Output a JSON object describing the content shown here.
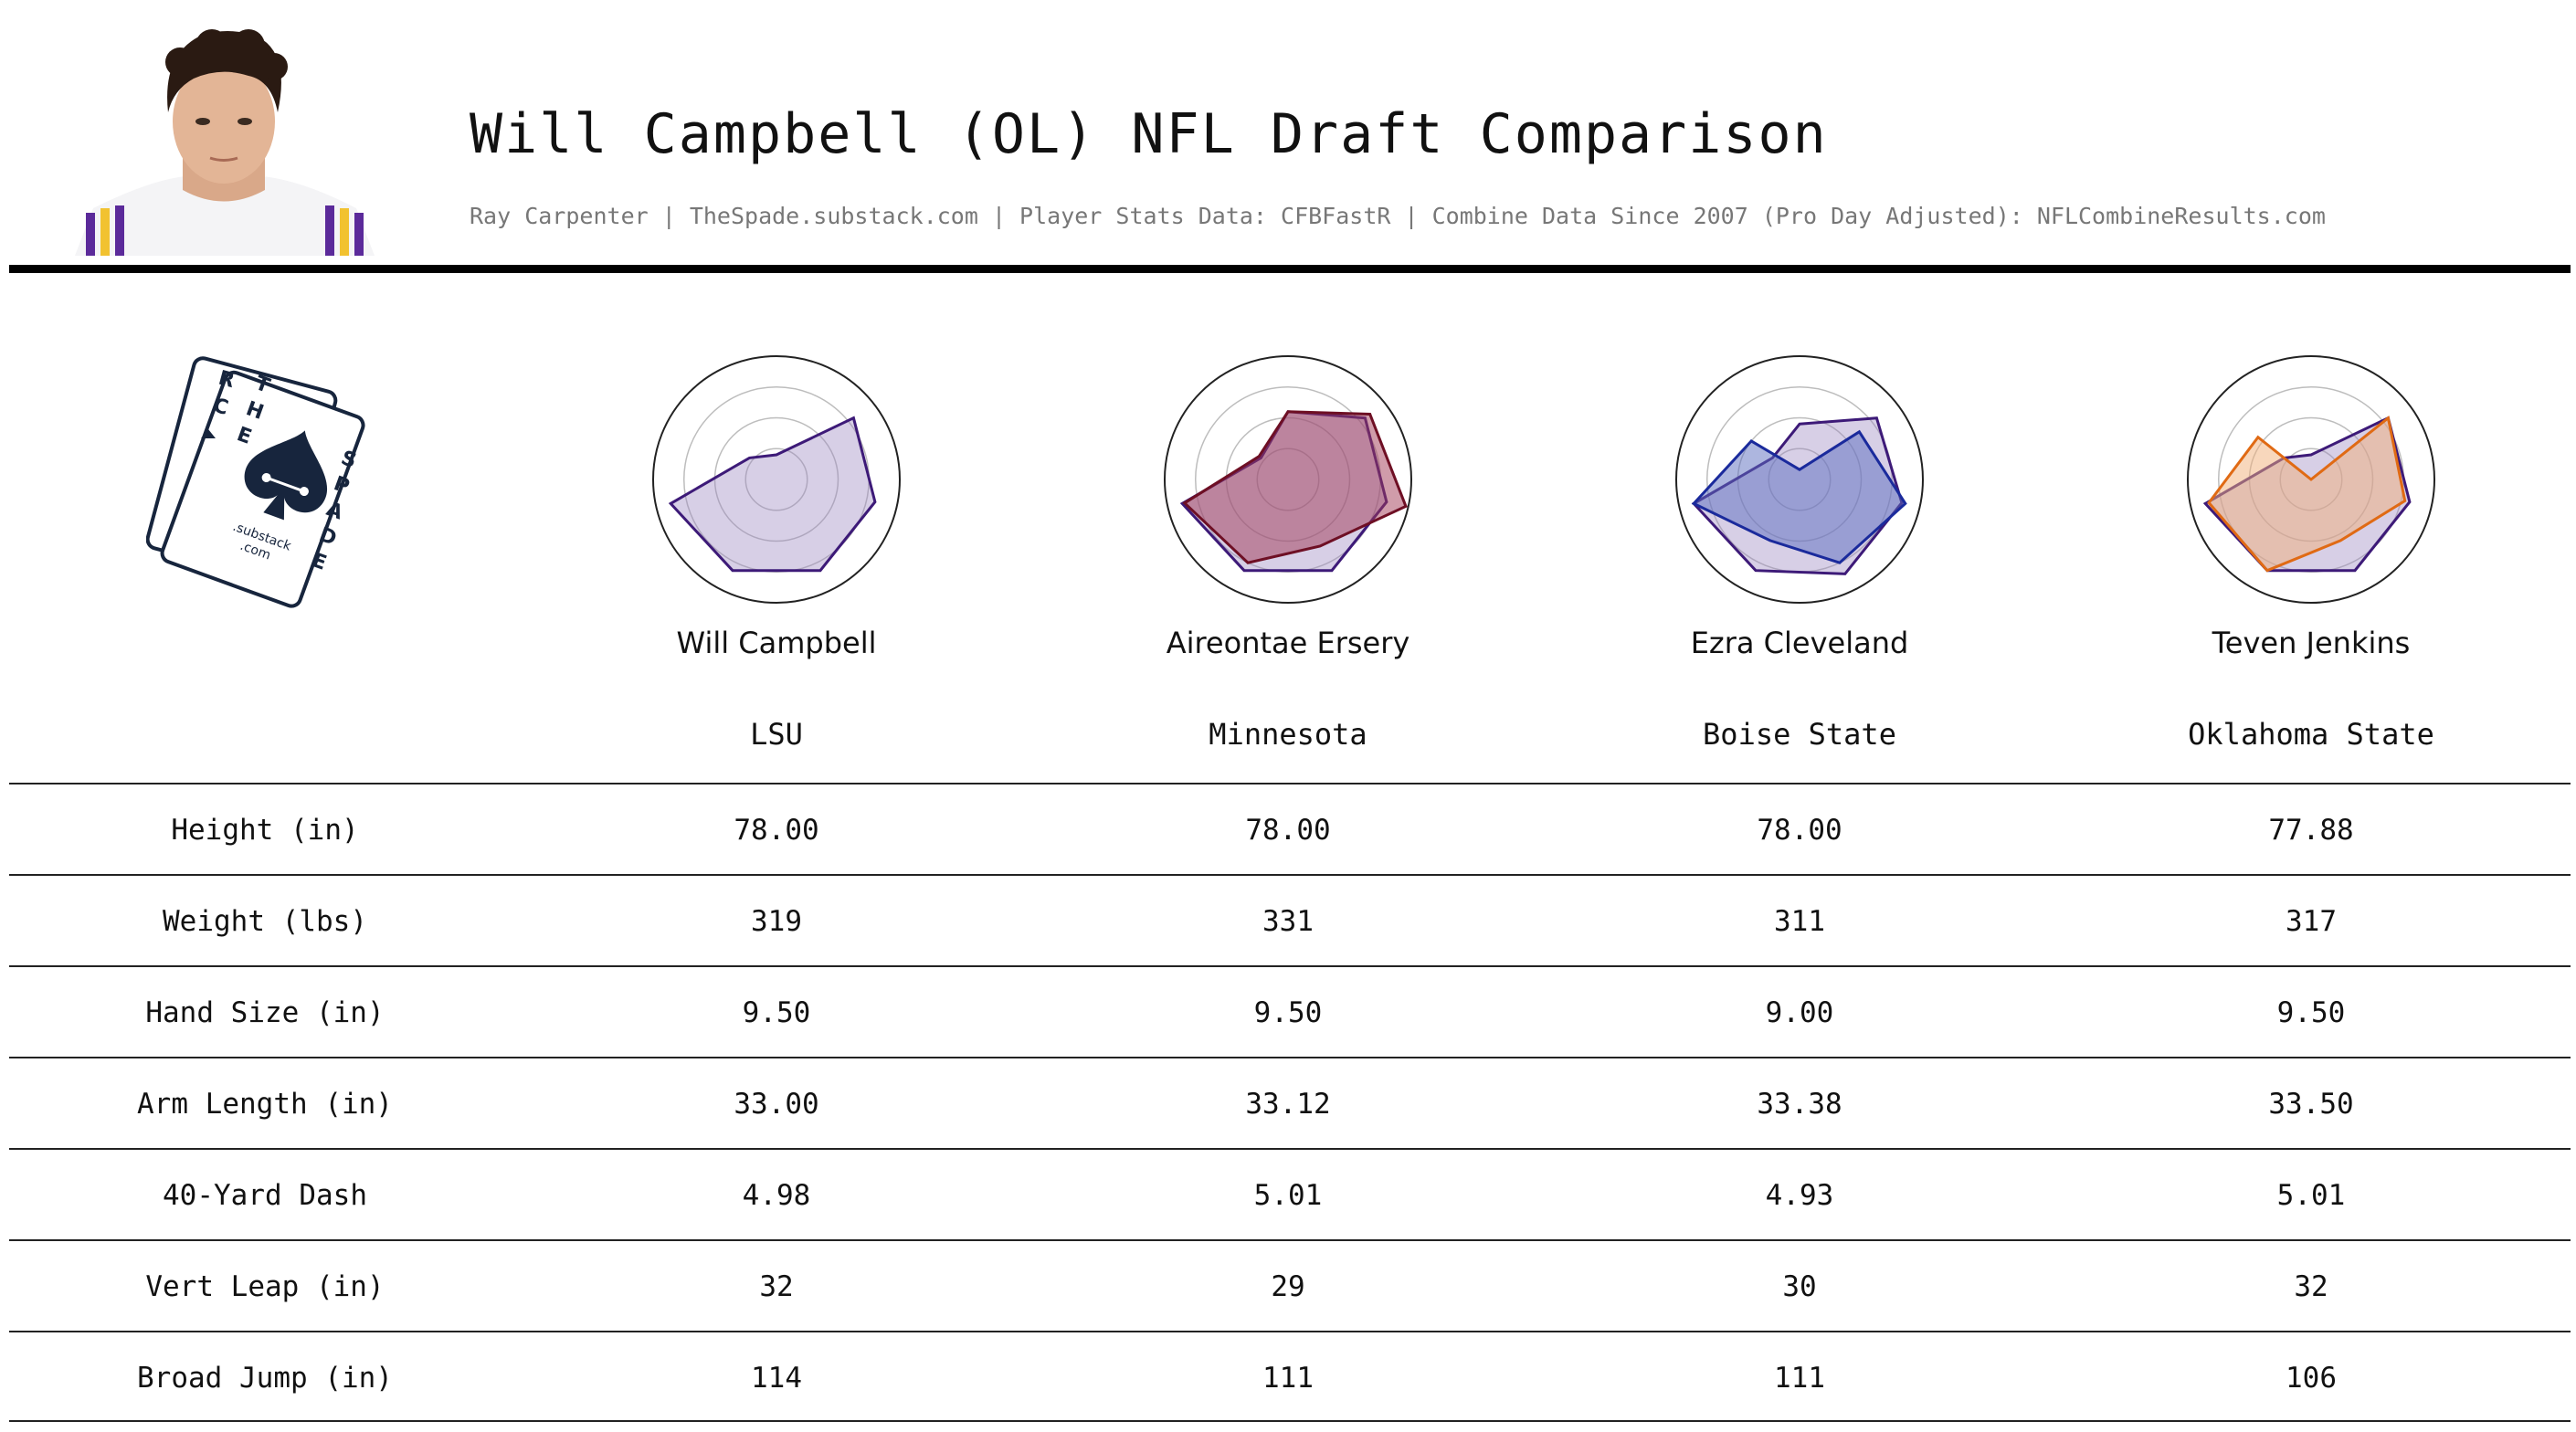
{
  "header": {
    "title": "Will Campbell (OL) NFL Draft Comparison",
    "subtitle": "Ray Carpenter | TheSpade.substack.com | Player Stats Data: CFBFastR | Combine Data Since 2007 (Pro Day Adjusted): NFLCombineResults.com"
  },
  "logo": {
    "left_letters": [
      "R",
      "C"
    ],
    "right_letters": [
      "T",
      "H",
      "E",
      "S",
      "P",
      "A",
      "D",
      "E"
    ],
    "sub_text": ".substack",
    "com_text": ".com",
    "color": "#17253d"
  },
  "chart_data": {
    "type": "radar",
    "axes_count": 7,
    "rlim": [
      0,
      1
    ],
    "players": [
      {
        "name": "Will Campbell",
        "school": "LSU",
        "color": "#3d1a78",
        "fill": "#9b86c0",
        "values": [
          0.2,
          0.8,
          0.82,
          0.82,
          0.82,
          0.88,
          0.28
        ],
        "compare": null
      },
      {
        "name": "Aireontae Ersery",
        "school": "Minnesota",
        "color": "#6e0f24",
        "fill": "#a23a55",
        "values": [
          0.55,
          0.85,
          0.98,
          0.6,
          0.75,
          0.86,
          0.3
        ],
        "compare": [
          0.55,
          0.8,
          0.82,
          0.82,
          0.82,
          0.88,
          0.28
        ]
      },
      {
        "name": "Ezra Cleveland",
        "school": "Boise State",
        "color": "#1a2a9c",
        "fill": "#5b6ec0",
        "values": [
          0.08,
          0.62,
          0.88,
          0.75,
          0.55,
          0.88,
          0.5
        ],
        "compare": [
          0.45,
          0.8,
          0.85,
          0.85,
          0.82,
          0.88,
          0.28
        ]
      },
      {
        "name": "Teven Jenkins",
        "school": "Oklahoma State",
        "color": "#e06a14",
        "fill": "#f1b07a",
        "values": [
          0.0,
          0.8,
          0.78,
          0.55,
          0.82,
          0.85,
          0.55
        ],
        "compare": [
          0.2,
          0.8,
          0.82,
          0.82,
          0.82,
          0.88,
          0.28
        ]
      }
    ]
  },
  "table": {
    "rows": [
      {
        "label": "Height (in)",
        "values": [
          "78.00",
          "78.00",
          "78.00",
          "77.88"
        ]
      },
      {
        "label": "Weight (lbs)",
        "values": [
          "319",
          "331",
          "311",
          "317"
        ]
      },
      {
        "label": "Hand Size (in)",
        "values": [
          "9.50",
          "9.50",
          "9.00",
          "9.50"
        ]
      },
      {
        "label": "Arm Length (in)",
        "values": [
          "33.00",
          "33.12",
          "33.38",
          "33.50"
        ]
      },
      {
        "label": "40-Yard Dash",
        "values": [
          "4.98",
          "5.01",
          "4.93",
          "5.01"
        ]
      },
      {
        "label": "Vert Leap (in)",
        "values": [
          "32",
          "29",
          "30",
          "32"
        ]
      },
      {
        "label": "Broad Jump (in)",
        "values": [
          "114",
          "111",
          "111",
          "106"
        ]
      }
    ]
  }
}
